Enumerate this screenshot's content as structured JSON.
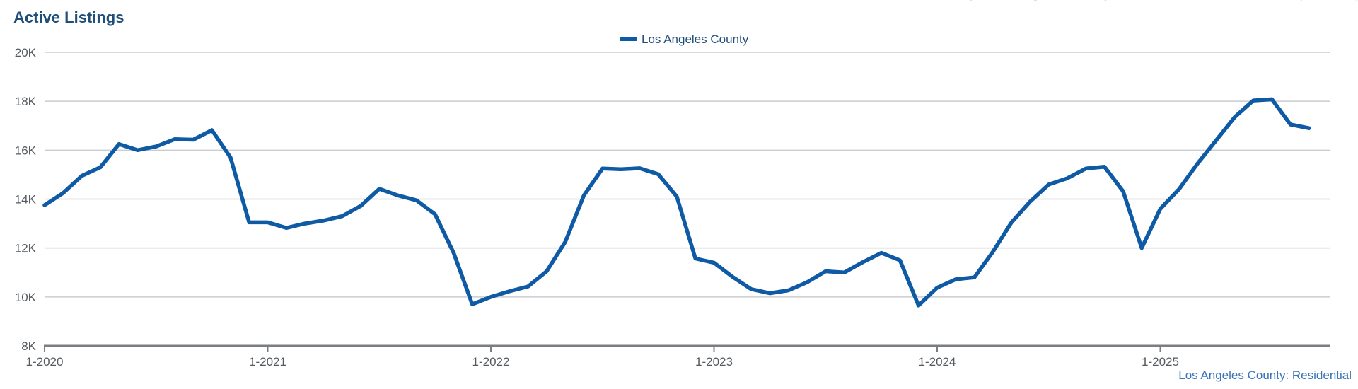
{
  "chart_data": {
    "type": "line",
    "title": "Active Listings",
    "xlabel": "",
    "ylabel": "",
    "x_tick_labels": [
      "1-2020",
      "1-2021",
      "1-2022",
      "1-2023",
      "1-2024",
      "1-2025"
    ],
    "y_tick_labels": [
      "8K",
      "10K",
      "12K",
      "14K",
      "16K",
      "18K",
      "20K"
    ],
    "y_ticks": [
      8000,
      10000,
      12000,
      14000,
      16000,
      18000,
      20000
    ],
    "ylim": [
      8000,
      20000
    ],
    "x_start": "1-2020",
    "x_end": "9-2025",
    "grid": true,
    "legend_position": "top-center",
    "series": [
      {
        "name": "Los Angeles County",
        "color": "#0f5aa5",
        "x": [
          "1-2020",
          "2-2020",
          "3-2020",
          "4-2020",
          "5-2020",
          "6-2020",
          "7-2020",
          "8-2020",
          "9-2020",
          "10-2020",
          "11-2020",
          "12-2020",
          "1-2021",
          "2-2021",
          "3-2021",
          "4-2021",
          "5-2021",
          "6-2021",
          "7-2021",
          "8-2021",
          "9-2021",
          "10-2021",
          "11-2021",
          "12-2021",
          "1-2022",
          "2-2022",
          "3-2022",
          "4-2022",
          "5-2022",
          "6-2022",
          "7-2022",
          "8-2022",
          "9-2022",
          "10-2022",
          "11-2022",
          "12-2022",
          "1-2023",
          "2-2023",
          "3-2023",
          "4-2023",
          "5-2023",
          "6-2023",
          "7-2023",
          "8-2023",
          "9-2023",
          "10-2023",
          "11-2023",
          "12-2023",
          "1-2024",
          "2-2024",
          "3-2024",
          "4-2024",
          "5-2024",
          "6-2024",
          "7-2024",
          "8-2024",
          "9-2024",
          "10-2024",
          "11-2024",
          "12-2024",
          "1-2025",
          "2-2025",
          "3-2025",
          "4-2025",
          "5-2025",
          "6-2025",
          "7-2025",
          "8-2025",
          "9-2025"
        ],
        "values": [
          13750,
          14250,
          14950,
          15300,
          16250,
          16000,
          16150,
          16450,
          16430,
          16820,
          15700,
          13050,
          13050,
          12820,
          13000,
          13120,
          13300,
          13720,
          14420,
          14150,
          13950,
          13380,
          11800,
          9700,
          10000,
          10230,
          10430,
          11050,
          12250,
          14150,
          15250,
          15220,
          15260,
          15020,
          14100,
          11570,
          11400,
          10820,
          10320,
          10150,
          10270,
          10600,
          11050,
          11000,
          11420,
          11800,
          11500,
          9650,
          10380,
          10720,
          10800,
          11850,
          13050,
          13900,
          14600,
          14850,
          15250,
          15320,
          14320,
          12000,
          13600,
          14400,
          15450,
          16400,
          17350,
          18030,
          18080,
          17050,
          16900
        ]
      }
    ]
  },
  "source_note": "Los Angeles County: Residential"
}
